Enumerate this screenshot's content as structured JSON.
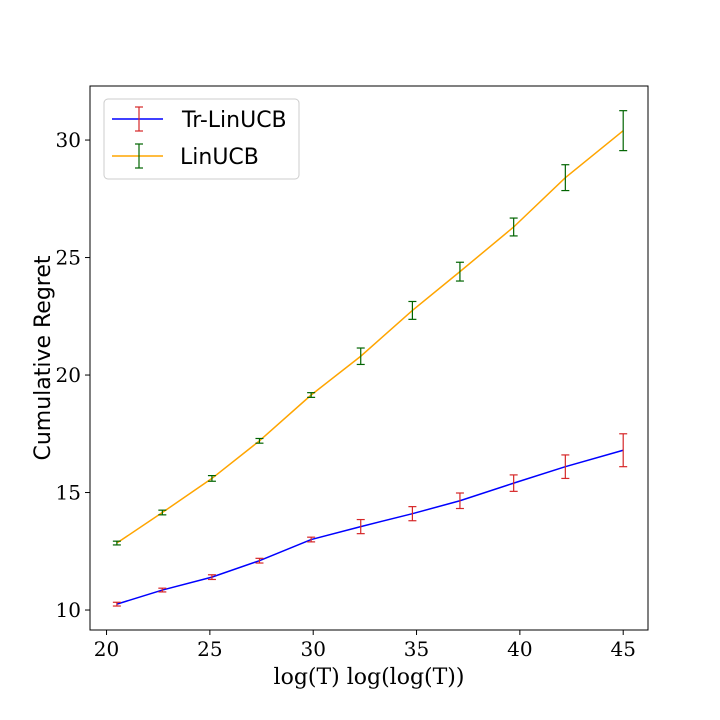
{
  "chart_data": {
    "type": "line",
    "xlabel": "log(T) log(log(T))",
    "ylabel": "Cumulative Regret",
    "xlim": [
      19.2,
      46.2
    ],
    "ylim": [
      9.15,
      32.3
    ],
    "x_ticks": [
      20,
      25,
      30,
      35,
      40,
      45
    ],
    "y_ticks": [
      10,
      15,
      20,
      25,
      30
    ],
    "x_tick_labels": [
      "20",
      "25",
      "30",
      "35",
      "40",
      "45"
    ],
    "y_tick_labels": [
      "10",
      "15",
      "20",
      "25",
      "30"
    ],
    "grid": false,
    "legend_position": "top-left",
    "x": [
      20.5,
      22.7,
      25.1,
      27.4,
      29.9,
      32.3,
      34.8,
      37.1,
      39.7,
      42.2,
      45.0
    ],
    "series": [
      {
        "name": "Tr-LinUCB",
        "color": "#0000ff",
        "errorbar_color": "#d62728",
        "values": [
          10.25,
          10.85,
          11.4,
          12.1,
          13.0,
          13.55,
          14.1,
          14.65,
          15.4,
          16.1,
          16.8
        ],
        "errors": [
          0.08,
          0.08,
          0.1,
          0.1,
          0.1,
          0.3,
          0.3,
          0.33,
          0.35,
          0.5,
          0.7
        ]
      },
      {
        "name": "LinUCB",
        "color": "#ffa500",
        "errorbar_color": "#006400",
        "values": [
          12.85,
          14.15,
          15.6,
          17.2,
          19.15,
          20.8,
          22.75,
          24.4,
          26.3,
          28.4,
          30.4
        ],
        "errors": [
          0.08,
          0.1,
          0.12,
          0.1,
          0.1,
          0.35,
          0.38,
          0.4,
          0.38,
          0.55,
          0.85
        ]
      }
    ]
  }
}
